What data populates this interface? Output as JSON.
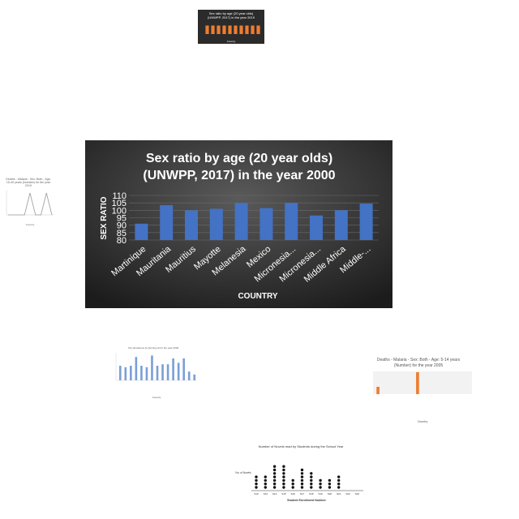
{
  "chart_data": [
    {
      "id": "main",
      "type": "bar",
      "title_line1": "Sex ratio by age (20 year olds)",
      "title_line2": "(UNWPP, 2017) in the year 2000",
      "xlabel": "COUNTRY",
      "ylabel": "SEX RATIO",
      "ylim": [
        80,
        110
      ],
      "yticks": [
        80,
        85,
        90,
        95,
        100,
        105,
        110
      ],
      "grid": true,
      "categories": [
        "Martinique",
        "Mauritania",
        "Mauritius",
        "Mayotte",
        "Melanesia",
        "Mexico",
        "Micronesia...",
        "Micronesia...",
        "Middle Africa",
        "Middle-..."
      ],
      "values": [
        91,
        103.5,
        100,
        101,
        105,
        101.5,
        105,
        96.5,
        100,
        104.5
      ],
      "colors": {
        "background_top": "#555555",
        "background_bottom": "#1e1e1e",
        "bar": "#4472c4",
        "text": "#ffffff",
        "grid": "#6a6a6a"
      }
    },
    {
      "id": "top-small",
      "type": "bar",
      "title_line1": "Sex ratio by age (20 year olds)",
      "title_line2": "(UNWPP, 2017) in the year 2019",
      "xlabel": "Country",
      "values": [
        7,
        7,
        7,
        7,
        7,
        7,
        7,
        7,
        7,
        7
      ],
      "colors": {
        "bar": "#ed7d31",
        "background": "#2b2b2b"
      }
    },
    {
      "id": "left-small",
      "type": "line",
      "title_line1": "Deaths - Malaria - Sex: Both - Age:",
      "title_line2": "15-49 years (Number) for the year",
      "title_line3": "2019",
      "xlabel": "Country",
      "values": [
        0,
        0,
        0,
        0,
        9,
        0,
        0,
        9,
        0
      ]
    },
    {
      "id": "middle-small",
      "type": "bar",
      "title_line1": "CO₂ Emissions by burning oil for the year 2004",
      "xlabel": "Country",
      "values": [
        5,
        4.5,
        5,
        8,
        5,
        4.5,
        8.5,
        5,
        5.5,
        5.5,
        7.5,
        6,
        7.5,
        3,
        2
      ]
    },
    {
      "id": "right-small",
      "type": "bar",
      "title_line1": "Deaths - Malaria - Sex: Both - Age: 5-14 years",
      "title_line2": "(Number) for the year 2005",
      "xlabel": "Country",
      "values": [
        2,
        0,
        0,
        0,
        6,
        0,
        0,
        0,
        0,
        0
      ]
    },
    {
      "id": "dot-plot",
      "type": "scatter",
      "title_line1": "Number of Novels read by Students during the School Year",
      "xlabel": "Student Enrollment Number",
      "ylabel": "No. of Novels",
      "categories": [
        "S12",
        "S13",
        "S14",
        "S15",
        "S16",
        "S17",
        "S18",
        "S19",
        "S20",
        "S21",
        "S22",
        "S23"
      ],
      "values": [
        4,
        4,
        7,
        7,
        3,
        6,
        5,
        3,
        3,
        4,
        0,
        0
      ]
    }
  ]
}
